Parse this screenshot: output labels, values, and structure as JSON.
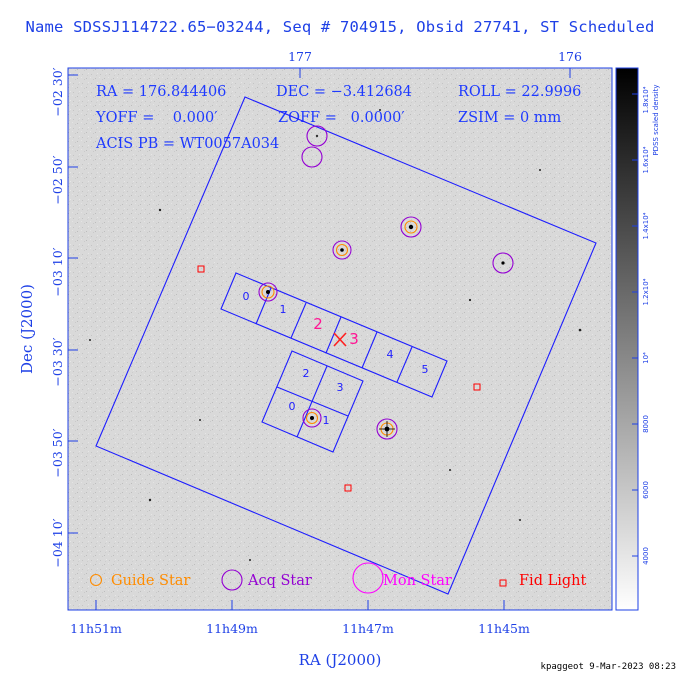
{
  "header": {
    "title": "Name SDSSJ114722.65−03244, Seq # 704915, Obsid 27741, ST Scheduled"
  },
  "axes": {
    "x_title": "RA (J2000)",
    "y_title": "Dec (J2000)",
    "bottom_ticks": [
      "11h51m",
      "11h49m",
      "11h47m",
      "11h45m"
    ],
    "top_ticks": [
      "177",
      "176"
    ],
    "left_ticks": [
      "−02 30′",
      "−02 50′",
      "−03 10′",
      "−03 30′",
      "−03 50′",
      "−04 10′"
    ]
  },
  "info": {
    "ra": "RA = 176.844406",
    "dec": "DEC = −3.412684",
    "roll": "ROLL = 22.9996",
    "yoff": "YOFF =    0.000′",
    "zoff": "ZOFF =   0.0000′",
    "zsim": "ZSIM = 0 mm",
    "acis": "ACIS PB = WT0057A034"
  },
  "ccds": {
    "labels": [
      "0",
      "1",
      "2",
      "3",
      "4",
      "5",
      "2",
      "3",
      "0",
      "1"
    ]
  },
  "legend": {
    "guide": "Guide Star",
    "acq": "Acq Star",
    "mon": "Mon Star",
    "fid": "Fid Light"
  },
  "colorbar": {
    "title": "PDSS scaled density",
    "ticks": [
      "4000",
      "6000",
      "8000",
      "10⁴",
      "1.2x10⁴",
      "1.4x10⁴",
      "1.6x10⁴",
      "1.8x10⁴"
    ]
  },
  "colors": {
    "axis": "#1e40e6",
    "guide": "#ff8c00",
    "acq": "#9400d3",
    "mon": "#ff00ff",
    "fid": "#ff0000",
    "aimpoint": "#ff0000"
  },
  "footer": {
    "credit": "kpaggeot  9-Mar-2023 08:23"
  }
}
